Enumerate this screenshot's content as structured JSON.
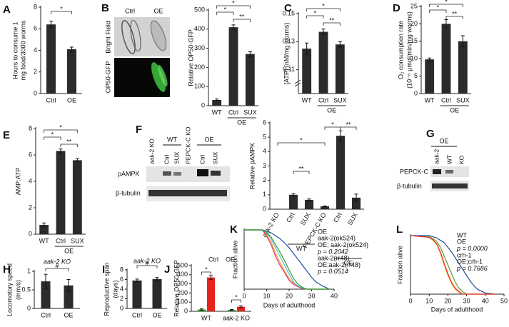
{
  "chart_data": [
    {
      "type": "bar",
      "label": "A",
      "ylabel": [
        "Hours to consume 1",
        "mg food/3000 worms"
      ],
      "categories": [
        "Ctrl",
        "OE"
      ],
      "values": [
        6.4,
        4.1
      ],
      "errors": [
        0.3,
        0.2
      ],
      "color": "#2b2b2b",
      "ylim": [
        0,
        8
      ],
      "yticks": [
        0,
        2,
        4,
        6,
        8
      ],
      "annotations": [
        "*"
      ]
    },
    {
      "type": "bar",
      "label": "B",
      "ylabel": [
        "Relative OP50-GFP"
      ],
      "categories": [
        "WT",
        "Ctrl",
        "SUX"
      ],
      "group_labels": [
        "OE"
      ],
      "values": [
        30,
        410,
        270
      ],
      "errors": [
        5,
        12,
        12
      ],
      "color": "#2b2b2b",
      "ylim": [
        0,
        500
      ],
      "yticks": [
        0,
        100,
        200,
        300,
        400,
        500
      ],
      "annotations": [
        "*",
        "*",
        "**"
      ]
    },
    {
      "type": "bar",
      "label": "C",
      "ylabel": [
        "[ATP] (nM/mg worms)"
      ],
      "categories": [
        "WT",
        "Ctrl",
        "SUX"
      ],
      "group_labels": [
        "OE"
      ],
      "values": [
        0.125,
        0.137,
        0.128
      ],
      "errors": [
        0.004,
        0.002,
        0.002
      ],
      "color": "#2b2b2b",
      "ylim": [
        0.093,
        0.15
      ],
      "yticks": [
        0.11,
        0.13,
        0.15
      ],
      "annotations": [
        "*",
        "*",
        "**"
      ]
    },
    {
      "type": "bar",
      "label": "D",
      "ylabel": [
        "O₂ consumption rate",
        "(10⁻⁶ μmol/min/mg worms)"
      ],
      "categories": [
        "WT",
        "Ctrl",
        "SUX"
      ],
      "group_labels": [
        "OE"
      ],
      "values": [
        9.8,
        20,
        15
      ],
      "errors": [
        0.4,
        1.2,
        1.6
      ],
      "color": "#2b2b2b",
      "ylim": [
        0,
        25
      ],
      "yticks": [
        0,
        5,
        10,
        15,
        20,
        25
      ],
      "annotations": [
        "*",
        "*",
        "**"
      ]
    },
    {
      "type": "bar",
      "label": "E",
      "ylabel": [
        "AMP:ATP"
      ],
      "categories": [
        "WT",
        "Ctrl",
        "SUX"
      ],
      "group_labels": [
        "OE"
      ],
      "values": [
        0.7,
        6.3,
        5.6
      ],
      "errors": [
        0.15,
        0.15,
        0.12
      ],
      "color": "#2b2b2b",
      "ylim": [
        0,
        8
      ],
      "yticks": [
        0,
        2,
        4,
        6,
        8
      ],
      "annotations": [
        "*",
        "*",
        "**"
      ]
    },
    {
      "type": "bar",
      "label": "F",
      "ylabel": [
        "Relative pAMPK"
      ],
      "categories": [
        "aak-2 KO",
        "Ctrl",
        "SUX",
        "PEPCK-C KO",
        "Ctrl",
        "SUX"
      ],
      "group_labels": [
        "WT",
        "OE"
      ],
      "values": [
        0,
        1.0,
        0.65,
        0.2,
        5.1,
        0.8
      ],
      "errors": [
        0,
        0.08,
        0.06,
        0.03,
        0.35,
        0.25
      ],
      "color": "#2b2b2b",
      "ylim": [
        0,
        6
      ],
      "yticks": [
        0,
        1,
        2,
        3,
        4,
        5,
        6
      ],
      "annotations": [
        "*",
        "*",
        "**",
        "**"
      ]
    },
    {
      "type": "bar",
      "label": "H",
      "title": "aak-2 KO",
      "ylabel": [
        "Locomotory speed",
        "(mm/s)"
      ],
      "categories": [
        "Ctrl",
        "OE"
      ],
      "values": [
        0.73,
        0.62
      ],
      "errors": [
        0.19,
        0.16
      ],
      "color": "#2b2b2b",
      "ylim": [
        0,
        1
      ],
      "yticks": [
        0,
        0.5,
        1
      ],
      "annotations": [
        "#"
      ]
    },
    {
      "type": "bar",
      "label": "I",
      "title": "aak-2 KO",
      "ylabel": [
        "Reproductive span",
        "(days)"
      ],
      "categories": [
        "Ctrl",
        "OE"
      ],
      "values": [
        5.8,
        6.1
      ],
      "errors": [
        0.3,
        0.3
      ],
      "color": "#2b2b2b",
      "ylim": [
        0,
        8
      ],
      "yticks": [
        0,
        2,
        4,
        6,
        8
      ],
      "annotations": [
        "#"
      ]
    },
    {
      "type": "grouped_bar",
      "label": "J",
      "ylabel": [
        "Relative OP50-GFP"
      ],
      "categories": [
        "WT",
        "aak-2 KO"
      ],
      "series": [
        {
          "name": "Ctrl",
          "color": "#22a02a",
          "values": [
            20,
            15
          ],
          "errors": [
            6,
            5
          ]
        },
        {
          "name": "OE",
          "color": "#e8231c",
          "values": [
            370,
            50
          ],
          "errors": [
            20,
            10
          ]
        }
      ],
      "ylim": [
        0,
        500
      ],
      "yticks": [
        0,
        100,
        200,
        300,
        400,
        500
      ],
      "annotations": [
        "*",
        "*"
      ]
    },
    {
      "type": "line",
      "label": "K",
      "xlabel": "Days of adulthood",
      "ylabel": [
        "Fraction alive"
      ],
      "x": [
        0,
        8,
        10,
        12,
        14,
        16,
        18,
        20,
        22,
        24,
        26,
        28,
        30,
        32,
        35,
        38
      ],
      "series": [
        {
          "name": "OE",
          "color": "#1f4e9c",
          "values": [
            1,
            1,
            0.98,
            0.95,
            0.9,
            0.85,
            0.78,
            0.7,
            0.6,
            0.5,
            0.4,
            0.3,
            0.2,
            0.12,
            0.05,
            0
          ]
        },
        {
          "name": "aak-2(ok524)",
          "color": "#f0a020",
          "values": [
            1,
            1,
            0.92,
            0.8,
            0.6,
            0.45,
            0.3,
            0.18,
            0.1,
            0.05,
            0.02,
            0,
            0,
            0,
            0,
            0
          ]
        },
        {
          "name": "OE; aak-2(ok524)",
          "color": "#e83060",
          "values": [
            1,
            1,
            0.9,
            0.75,
            0.55,
            0.4,
            0.28,
            0.15,
            0.08,
            0.04,
            0.01,
            0,
            0,
            0,
            0,
            0
          ]
        },
        {
          "name": "aak-2(rr48)",
          "color": "#5bb8e0",
          "values": [
            1,
            1,
            0.95,
            0.85,
            0.7,
            0.55,
            0.4,
            0.25,
            0.12,
            0.05,
            0.02,
            0,
            0,
            0,
            0,
            0
          ]
        },
        {
          "name": "OE;aak-2(rr48)",
          "color": "#2ca02c",
          "values": [
            1,
            1,
            0.96,
            0.88,
            0.75,
            0.62,
            0.48,
            0.32,
            0.18,
            0.08,
            0.03,
            0,
            0,
            0,
            0,
            0
          ]
        }
      ],
      "xlim": [
        0,
        40
      ],
      "xticks": [
        0,
        10,
        20,
        30,
        40
      ],
      "ylim": [
        0,
        1
      ],
      "annotations": [
        "p = 0.2042",
        "p = 0.0514"
      ]
    },
    {
      "type": "line",
      "label": "L",
      "xlabel": "Days of adulthood",
      "ylabel": [
        "Fraction alive"
      ],
      "x": [
        0,
        10,
        12,
        14,
        16,
        18,
        20,
        22,
        24,
        26,
        28,
        30,
        32,
        34,
        36,
        40,
        45
      ],
      "series": [
        {
          "name": "WT",
          "color": "#5a9a2a",
          "values": [
            1,
            0.98,
            0.95,
            0.9,
            0.8,
            0.65,
            0.5,
            0.35,
            0.2,
            0.1,
            0.04,
            0,
            0,
            0,
            0,
            0,
            0
          ]
        },
        {
          "name": "OE",
          "color": "#1f4e9c",
          "values": [
            1,
            1,
            0.98,
            0.96,
            0.92,
            0.88,
            0.8,
            0.72,
            0.62,
            0.52,
            0.42,
            0.32,
            0.22,
            0.14,
            0.08,
            0.02,
            0
          ]
        },
        {
          "name": "crh-1",
          "color": "#f0a020",
          "values": [
            1,
            0.97,
            0.92,
            0.85,
            0.7,
            0.5,
            0.32,
            0.18,
            0.08,
            0.03,
            0,
            0,
            0,
            0,
            0,
            0,
            0
          ]
        },
        {
          "name": "OE;crh-1",
          "color": "#e83030",
          "values": [
            1,
            0.97,
            0.93,
            0.86,
            0.72,
            0.53,
            0.35,
            0.2,
            0.1,
            0.04,
            0,
            0,
            0,
            0,
            0,
            0,
            0
          ]
        }
      ],
      "xlim": [
        0,
        50
      ],
      "xticks": [
        0,
        10,
        20,
        30,
        40,
        50
      ],
      "ylim": [
        0,
        1
      ],
      "annotations": [
        "p = 0.0000",
        "p = 0.7686"
      ]
    }
  ],
  "images": {
    "B": {
      "columns": [
        "Ctrl",
        "OE"
      ],
      "rows": [
        "Bright Field",
        "OP50-GFP"
      ]
    },
    "F": {
      "lanes": [
        "aak-2 KO",
        "Ctrl",
        "SUX",
        "PEPCK-C KO",
        "Ctrl",
        "SUX"
      ],
      "groups": [
        "WT",
        "OE"
      ],
      "rows": [
        "pAMPK",
        "β-tubulin"
      ]
    },
    "G": {
      "label": "G",
      "group": "OE",
      "lanes": [
        "aak-2",
        "WT",
        "KO"
      ],
      "rows": [
        "PEPCK-C",
        "β-tubulin"
      ]
    }
  }
}
